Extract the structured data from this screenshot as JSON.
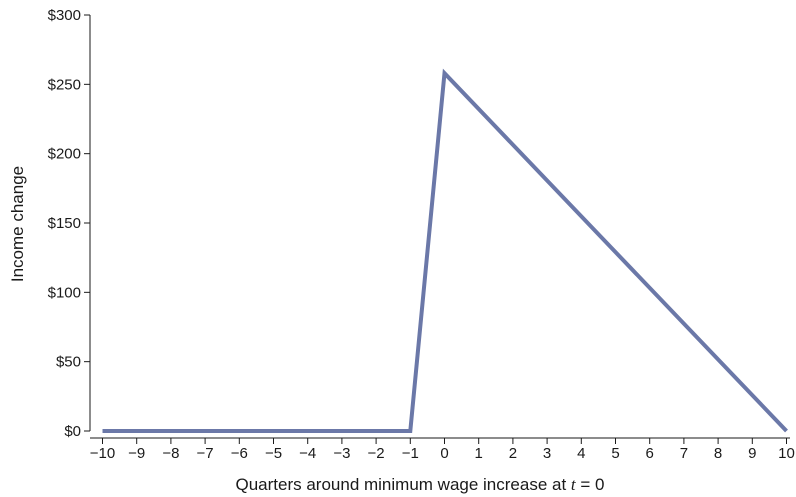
{
  "chart_data": {
    "type": "line",
    "title": "",
    "xlabel": "Quarters around minimum wage increase at ",
    "xlabel_var": "t",
    "xlabel_eq": " = 0",
    "ylabel": "Income change",
    "xlim": [
      -10.5,
      10.5
    ],
    "ylim": [
      0,
      300
    ],
    "x_ticks": [
      -10,
      -9,
      -8,
      -7,
      -6,
      -5,
      -4,
      -3,
      -2,
      -1,
      0,
      1,
      2,
      3,
      4,
      5,
      6,
      7,
      8,
      9,
      10
    ],
    "x_tick_labels": [
      "−10",
      "−9",
      "−8",
      "−7",
      "−6",
      "−5",
      "−4",
      "−3",
      "−2",
      "−1",
      "0",
      "1",
      "2",
      "3",
      "4",
      "5",
      "6",
      "7",
      "8",
      "9",
      "10"
    ],
    "y_ticks": [
      0,
      50,
      100,
      150,
      200,
      250,
      300
    ],
    "y_tick_labels": [
      "$0",
      "$50",
      "$100",
      "$150",
      "$200",
      "$250",
      "$300"
    ],
    "grid": false,
    "line_color": "#6b78a8",
    "series": [
      {
        "x": [
          -10,
          -9,
          -8,
          -7,
          -6,
          -5,
          -4,
          -3,
          -2,
          -1,
          0,
          10
        ],
        "y": [
          0,
          0,
          0,
          0,
          0,
          0,
          0,
          0,
          0,
          0,
          258,
          0
        ]
      }
    ]
  }
}
